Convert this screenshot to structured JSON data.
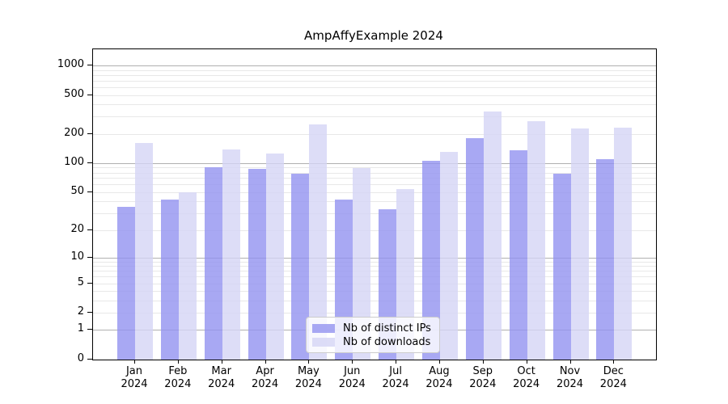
{
  "title": "AmpAffyExample 2024",
  "chart_data": {
    "type": "bar",
    "title": "AmpAffyExample 2024",
    "scale": "log1p",
    "categories": [
      "Jan",
      "Feb",
      "Mar",
      "Apr",
      "May",
      "Jun",
      "Jul",
      "Aug",
      "Sep",
      "Oct",
      "Nov",
      "Dec"
    ],
    "year": "2024",
    "series": [
      {
        "name": "Nb of distinct IPs",
        "color": "#9292f0",
        "opacity": 0.8,
        "values": [
          35,
          42,
          91,
          87,
          77,
          42,
          33,
          105,
          180,
          135,
          77,
          110
        ]
      },
      {
        "name": "Nb of downloads",
        "color": "#d5d5f5",
        "opacity": 0.8,
        "values": [
          160,
          50,
          138,
          125,
          250,
          89,
          54,
          130,
          340,
          270,
          225,
          230
        ]
      }
    ],
    "y_ticks": [
      0,
      1,
      2,
      5,
      10,
      20,
      50,
      100,
      200,
      500,
      1000
    ],
    "y_tick_labels": [
      "0",
      "1",
      "2",
      "5",
      "10",
      "20",
      "50",
      "100",
      "200",
      "500",
      "1000"
    ],
    "ylim": [
      0,
      1465
    ],
    "xlabel": "",
    "ylabel": "",
    "grid": {
      "major_values": [
        1,
        10,
        100,
        1000
      ],
      "major_color": "#b0b0b0",
      "minor_color": "#e8e8e8",
      "minor_decades": [
        1,
        10,
        100
      ]
    },
    "legend_position": "lower center",
    "axis_color": "#000000",
    "background_color": "#ffffff"
  },
  "legend": {
    "items": [
      {
        "label": "Nb of distinct IPs"
      },
      {
        "label": "Nb of downloads"
      }
    ]
  }
}
